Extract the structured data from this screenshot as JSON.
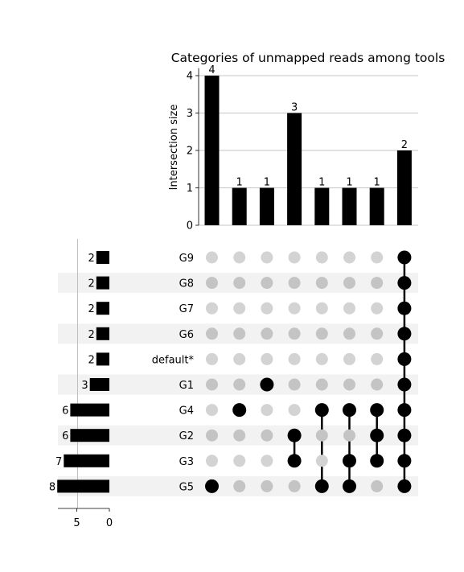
{
  "chart_data": {
    "type": "bar",
    "title": "Categories of unmapped reads among tools",
    "ylabel": "Intersection size",
    "ylim": [
      0,
      4.2
    ],
    "yticks": [
      0,
      1,
      2,
      3,
      4
    ],
    "grid": true,
    "intersection_sizes": [
      4,
      1,
      1,
      3,
      1,
      1,
      1,
      2
    ],
    "sets": [
      "G9",
      "G8",
      "G7",
      "G6",
      "default*",
      "G1",
      "G4",
      "G2",
      "G3",
      "G5"
    ],
    "set_sizes": [
      2,
      2,
      2,
      2,
      2,
      3,
      6,
      6,
      7,
      8
    ],
    "set_size_xticks": [
      5,
      0
    ],
    "memberships": [
      [
        "G5"
      ],
      [
        "G4"
      ],
      [
        "G1"
      ],
      [
        "G2",
        "G3"
      ],
      [
        "G4",
        "G5"
      ],
      [
        "G4",
        "G3",
        "G5"
      ],
      [
        "G4",
        "G2",
        "G3"
      ],
      [
        "G9",
        "G8",
        "G7",
        "G6",
        "default*",
        "G1",
        "G4",
        "G2",
        "G3",
        "G5"
      ]
    ],
    "colors": {
      "bar": "#000000",
      "active_dot": "#000000",
      "inactive_dot_light": "#d3d3d3",
      "inactive_dot_shaded": "#c4c4c4",
      "row_shade": "#f2f2f2",
      "grid": "#b0b0b0"
    }
  }
}
